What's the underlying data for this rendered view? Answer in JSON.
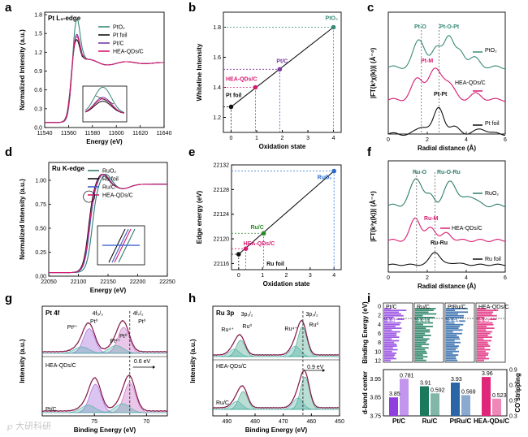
{
  "figure": {
    "watermark": "℘ 大研科研"
  },
  "chart_data": [
    {
      "type": "line",
      "panel": "a",
      "title": "Pt L₃-edge",
      "xlabel": "Energy (eV)",
      "ylabel": "Normalized Intensity (a.u.)",
      "xlim": [
        11540,
        11640
      ],
      "ylim": [
        0,
        1.8
      ],
      "xticks": [
        "11540",
        "11560",
        "11580",
        "11600",
        "11620",
        "11640"
      ],
      "yticks": [
        "0.0",
        "0.3",
        "0.6",
        "0.9",
        "1.2",
        "1.5",
        "1.8"
      ],
      "series": [
        {
          "name": "PtO₂",
          "color": "#3a8a78"
        },
        {
          "name": "Pt foil",
          "color": "#111111"
        },
        {
          "name": "Pt/C",
          "color": "#7a3ba3"
        },
        {
          "name": "HEA-QDs/C",
          "color": "#d81b72"
        }
      ],
      "inset": "zoom of white line peak"
    },
    {
      "type": "line",
      "panel": "b",
      "title": "",
      "xlabel": "Oxidation state",
      "ylabel": "Whiteline Intensity",
      "xlim": [
        -0.3,
        4.3
      ],
      "ylim": [
        1.1,
        1.9
      ],
      "xticks": [
        "0",
        "1",
        "2",
        "3",
        "4"
      ],
      "yticks": [
        "1.2",
        "1.4",
        "1.6",
        "1.8"
      ],
      "points": [
        {
          "label": "Pt foil",
          "x": 0,
          "y": 1.27,
          "color": "#111111"
        },
        {
          "label": "HEA-QDs/C",
          "x": 0.95,
          "y": 1.4,
          "color": "#d81b72"
        },
        {
          "label": "Pt/C",
          "x": 1.9,
          "y": 1.52,
          "color": "#7a3ba3"
        },
        {
          "label": "PtO₂",
          "x": 4,
          "y": 1.8,
          "color": "#3a8a78"
        }
      ],
      "fit_line": [
        [
          0,
          1.27
        ],
        [
          4,
          1.8
        ]
      ]
    },
    {
      "type": "line",
      "panel": "c",
      "xlabel": "Radial distance (Å)",
      "ylabel": "|FT(k³χ(k))| (Å⁻⁴)",
      "xlim": [
        0,
        6
      ],
      "xticks": [
        "0",
        "2",
        "4",
        "6"
      ],
      "series": [
        {
          "name": "PtO₂",
          "color": "#3a8a78"
        },
        {
          "name": "HEA-QDs/C",
          "color": "#d81b72"
        },
        {
          "name": "Pt foil",
          "color": "#111111"
        }
      ],
      "annotations": [
        "Pt-O",
        "Pt-O-Pt",
        "Pt-M",
        "Pt-Pt"
      ]
    },
    {
      "type": "line",
      "panel": "d",
      "title": "Ru K-edge",
      "xlabel": "Energy (eV)",
      "ylabel": "Normalized Intensity (a.u.)",
      "xlim": [
        22050,
        22250
      ],
      "ylim": [
        0,
        1.25
      ],
      "xticks": [
        "22050",
        "22100",
        "22150",
        "22200",
        "22250"
      ],
      "yticks": [
        "0.00",
        "0.25",
        "0.50",
        "0.75",
        "1.00"
      ],
      "series": [
        {
          "name": "RuO₂",
          "color": "#2f7d6d"
        },
        {
          "name": "Ru foil",
          "color": "#111111"
        },
        {
          "name": "Ru/C",
          "color": "#3b5fc7"
        },
        {
          "name": "HEA-QDs/C",
          "color": "#d81b72"
        }
      ],
      "inset": "zoom of absorption edge"
    },
    {
      "type": "line",
      "panel": "e",
      "xlabel": "Oxidation state",
      "ylabel": "Edge energy (eV)",
      "xlim": [
        -0.3,
        4.3
      ],
      "ylim": [
        22115,
        22132
      ],
      "xticks": [
        "0",
        "1",
        "2",
        "3",
        "4"
      ],
      "yticks": [
        "22116",
        "22120",
        "22124",
        "22128",
        "22132"
      ],
      "points": [
        {
          "label": "Ru foil",
          "x": 0,
          "y": 22117.5,
          "color": "#111111"
        },
        {
          "label": "HEA-QDs/C",
          "x": 0.3,
          "y": 22118.4,
          "color": "#d81b72"
        },
        {
          "label": "Ru/C",
          "x": 1.05,
          "y": 22120.9,
          "color": "#2a8a2a"
        },
        {
          "label": "RuO₂",
          "x": 4,
          "y": 22131.0,
          "color": "#2a6ad1"
        }
      ],
      "fit_line": [
        [
          0,
          22117.5
        ],
        [
          4,
          22131.0
        ]
      ]
    },
    {
      "type": "line",
      "panel": "f",
      "xlabel": "Radial distance (Å)",
      "ylabel": "|FT(k³χ(k))| (Å⁻⁴)",
      "xlim": [
        0,
        6
      ],
      "xticks": [
        "0",
        "2",
        "4",
        "6"
      ],
      "series": [
        {
          "name": "RuO₂",
          "color": "#2f7d6d"
        },
        {
          "name": "HEA-QDs/C",
          "color": "#d81b72"
        },
        {
          "name": "Ru foil",
          "color": "#111111"
        }
      ],
      "annotations": [
        "Ru-O",
        "Ru-O-Ru",
        "Ru-M",
        "Ru-Ru"
      ]
    },
    {
      "type": "line",
      "panel": "g",
      "title": "Pt 4f",
      "xlabel": "Binding Energy (eV)",
      "ylabel": "Intensity (a.u.)",
      "xlim": [
        80,
        68
      ],
      "xticks": [
        "75",
        "70"
      ],
      "samples": [
        "HEA-QDs/C",
        "Pt/C"
      ],
      "peak_labels": [
        "4f₅/₂",
        "4f₇/₂",
        "Pt⁰",
        "Pt²⁺",
        "Pt⁰",
        "Pt²⁺",
        "Pt⁰"
      ],
      "shift": "0.6 eV"
    },
    {
      "type": "line",
      "panel": "h",
      "title": "Ru 3p",
      "xlabel": "Binding Energy (eV)",
      "ylabel": "Intensity (a.u.)",
      "xlim": [
        495,
        450
      ],
      "xticks": [
        "490",
        "480",
        "470",
        "460",
        "450"
      ],
      "samples": [
        "HEA-QDs/C",
        "Ru/C"
      ],
      "peak_labels": [
        "3p₁/₂",
        "3p₃/₂",
        "Ru⁴⁺",
        "Ru⁰",
        "Ru⁴⁺",
        "Ru⁰"
      ],
      "shift": "0.9 eV"
    },
    {
      "type": "bar",
      "panel": "i",
      "categories": [
        "Pt/C",
        "Ru/C",
        "PtRu/C",
        "HEA-QDs/C"
      ],
      "series": [
        {
          "name": "d-band center",
          "values": [
            3.85,
            3.91,
            3.93,
            3.96
          ]
        },
        {
          "name": "CO stripping",
          "values": [
            0.781,
            0.592,
            0.569,
            0.523
          ]
        }
      ],
      "top_values": [
        "3.85",
        "3.91",
        "3.93",
        "3.96"
      ],
      "top_ylabel": "Binding Energy (eV)",
      "top_yticks": [
        "0",
        "2",
        "4",
        "6",
        "8",
        "10",
        "12"
      ],
      "ylabel_left": "d-band center",
      "ylabel_right": "CO stripping",
      "ylim_left": [
        3.75,
        4.0
      ],
      "ylim_right": [
        0.3,
        0.9
      ],
      "left_ticks": [
        "3.75",
        "3.80",
        "3.85",
        "3.90",
        "3.95",
        "4.00"
      ],
      "right_ticks": [
        "0.3",
        "0.4",
        "0.5",
        "0.6",
        "0.7",
        "0.8",
        "0.9"
      ],
      "bar_labels": [
        "3.85",
        "0.781",
        "3.91",
        "0.592",
        "3.93",
        "0.569",
        "3.96",
        "0.523"
      ],
      "colors": [
        "#8f3fe0",
        "#1b7a5c",
        "#2a65a8",
        "#e0267a"
      ]
    }
  ]
}
